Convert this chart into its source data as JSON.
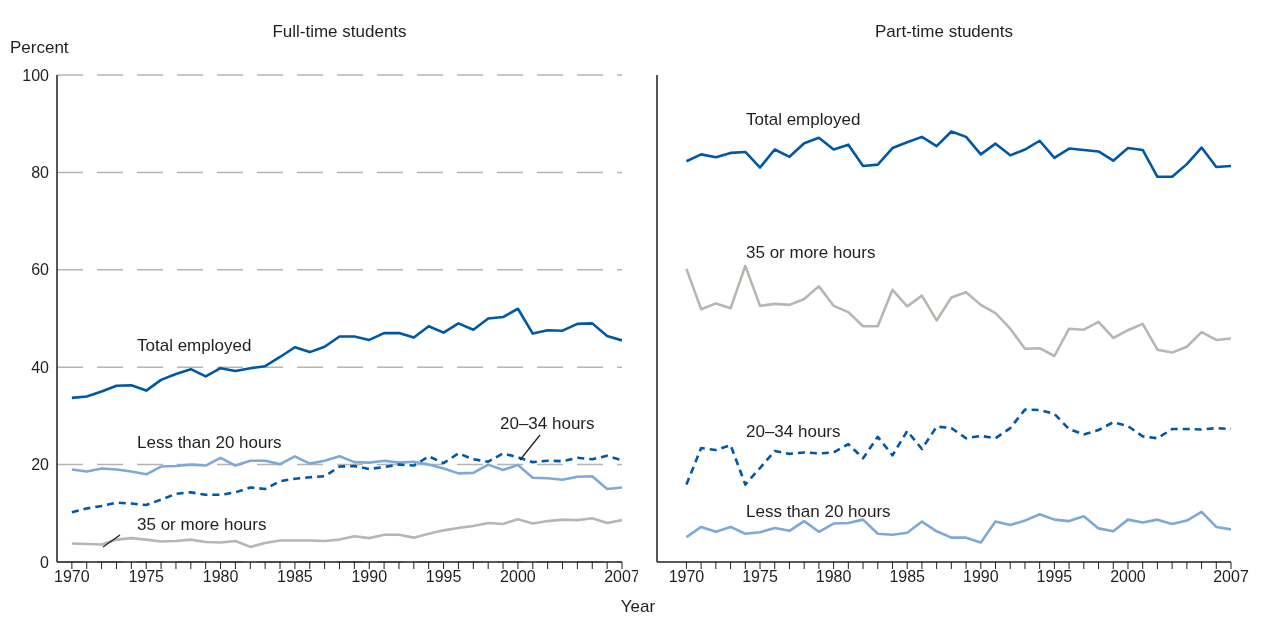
{
  "chart_data": [
    {
      "type": "line",
      "title": "Full-time students",
      "ylabel": "Percent",
      "xlabel": "Year",
      "xlim": [
        1969,
        2007
      ],
      "ylim": [
        0,
        100
      ],
      "yticks": [
        0,
        20,
        40,
        60,
        80,
        100
      ],
      "grid": "y",
      "xticks": [
        1970,
        {
          "value": 1971,
          "label": null
        },
        {
          "value": 1972,
          "label": null
        },
        {
          "value": 1973,
          "label": null
        },
        {
          "value": 1974,
          "label": null
        },
        1975,
        {
          "value": 1976,
          "label": null
        },
        {
          "value": 1977,
          "label": null
        },
        {
          "value": 1978,
          "label": null
        },
        {
          "value": 1979,
          "label": null
        },
        1980,
        {
          "value": 1981,
          "label": null
        },
        {
          "value": 1982,
          "label": null
        },
        {
          "value": 1983,
          "label": null
        },
        {
          "value": 1984,
          "label": null
        },
        1985,
        {
          "value": 1986,
          "label": null
        },
        {
          "value": 1987,
          "label": null
        },
        {
          "value": 1988,
          "label": null
        },
        {
          "value": 1989,
          "label": null
        },
        1990,
        {
          "value": 1991,
          "label": null
        },
        {
          "value": 1992,
          "label": null
        },
        {
          "value": 1993,
          "label": null
        },
        {
          "value": 1994,
          "label": null
        },
        1995,
        {
          "value": 1996,
          "label": null
        },
        {
          "value": 1997,
          "label": null
        },
        {
          "value": 1998,
          "label": null
        },
        {
          "value": 1999,
          "label": null
        },
        2000,
        {
          "value": 2001,
          "label": null
        },
        {
          "value": 2002,
          "label": null
        },
        {
          "value": 2003,
          "label": null
        },
        {
          "value": 2004,
          "label": null
        },
        {
          "value": 2005,
          "label": null
        },
        {
          "value": 2006,
          "label": null
        },
        2007
      ],
      "x": [
        1970,
        1971,
        1972,
        1973,
        1974,
        1975,
        1976,
        1977,
        1978,
        1979,
        1980,
        1981,
        1982,
        1983,
        1984,
        1985,
        1986,
        1987,
        1988,
        1989,
        1990,
        1991,
        1992,
        1993,
        1994,
        1995,
        1996,
        1997,
        1998,
        1999,
        2000,
        2001,
        2002,
        2003,
        2004,
        2005,
        2006,
        2007
      ],
      "series": [
        {
          "name": "Total employed",
          "color": "#0057a5",
          "values": [
            33.7,
            34,
            35,
            36.2,
            36.3,
            35.2,
            37.4,
            38.6,
            39.6,
            38.1,
            39.8,
            39.2,
            39.8,
            40.2,
            42.1,
            44.1,
            43.1,
            44.2,
            46.3,
            46.3,
            45.6,
            47,
            47,
            46.1,
            48.4,
            47.1,
            49,
            47.7,
            50,
            50.3,
            52,
            46.9,
            47.6,
            47.5,
            48.9,
            49,
            46.4,
            45.5
          ]
        },
        {
          "name": "Less than 20 hours",
          "color": "#7ea8d8",
          "values": [
            19,
            18.6,
            19.2,
            19,
            18.6,
            18,
            19.6,
            19.7,
            20,
            19.8,
            21.4,
            19.8,
            20.8,
            20.8,
            20.1,
            21.7,
            20.2,
            20.8,
            21.7,
            20.5,
            20.4,
            20.8,
            20.4,
            20.6,
            20,
            19.2,
            18.2,
            18.3,
            20,
            18.9,
            19.9,
            17.3,
            17.2,
            16.9,
            17.5,
            17.6,
            15,
            15.3
          ]
        },
        {
          "name": "20–34 hours",
          "color": "#0057a5",
          "line_style": "dashed",
          "values": [
            10.2,
            11,
            11.5,
            12.2,
            12,
            11.7,
            12.8,
            14,
            14.3,
            13.8,
            13.8,
            14.3,
            15.3,
            15,
            16.6,
            17.1,
            17.4,
            17.6,
            19.6,
            19.7,
            19.1,
            19.5,
            20,
            19.8,
            21.7,
            20.3,
            22.3,
            21.1,
            20.6,
            22.3,
            21.5,
            20.5,
            20.8,
            20.7,
            21.4,
            21.1,
            21.8,
            20.9
          ]
        },
        {
          "name": "35 or more hours",
          "color": "#b7b7b2",
          "values": [
            3.8,
            3.7,
            3.6,
            4.6,
            4.9,
            4.6,
            4.2,
            4.3,
            4.6,
            4.1,
            4,
            4.3,
            3.1,
            3.9,
            4.4,
            4.4,
            4.4,
            4.3,
            4.6,
            5.3,
            4.9,
            5.6,
            5.6,
            5,
            5.8,
            6.5,
            7,
            7.4,
            8,
            7.8,
            8.8,
            7.9,
            8.4,
            8.7,
            8.6,
            9,
            8,
            8.6
          ]
        }
      ]
    },
    {
      "type": "line",
      "title": "Part-time students",
      "tick_labels": "x",
      "xlim": [
        1968,
        2007
      ],
      "ylim": [
        0,
        100
      ],
      "yticks": [
        0,
        20,
        40,
        60,
        80,
        100
      ],
      "grid": "y",
      "xticks": [
        1970,
        {
          "value": 1971,
          "label": null
        },
        {
          "value": 1972,
          "label": null
        },
        {
          "value": 1973,
          "label": null
        },
        {
          "value": 1974,
          "label": null
        },
        1975,
        {
          "value": 1976,
          "label": null
        },
        {
          "value": 1977,
          "label": null
        },
        {
          "value": 1978,
          "label": null
        },
        {
          "value": 1979,
          "label": null
        },
        1980,
        {
          "value": 1981,
          "label": null
        },
        {
          "value": 1982,
          "label": null
        },
        {
          "value": 1983,
          "label": null
        },
        {
          "value": 1984,
          "label": null
        },
        1985,
        {
          "value": 1986,
          "label": null
        },
        {
          "value": 1987,
          "label": null
        },
        {
          "value": 1988,
          "label": null
        },
        {
          "value": 1989,
          "label": null
        },
        1990,
        {
          "value": 1991,
          "label": null
        },
        {
          "value": 1992,
          "label": null
        },
        {
          "value": 1993,
          "label": null
        },
        {
          "value": 1994,
          "label": null
        },
        1995,
        {
          "value": 1996,
          "label": null
        },
        {
          "value": 1997,
          "label": null
        },
        {
          "value": 1998,
          "label": null
        },
        {
          "value": 1999,
          "label": null
        },
        2000,
        {
          "value": 2001,
          "label": null
        },
        {
          "value": 2002,
          "label": null
        },
        {
          "value": 2003,
          "label": null
        },
        {
          "value": 2004,
          "label": null
        },
        {
          "value": 2005,
          "label": null
        },
        {
          "value": 2006,
          "label": null
        },
        2007
      ],
      "x": [
        1970,
        1971,
        1972,
        1973,
        1974,
        1975,
        1976,
        1977,
        1978,
        1979,
        1980,
        1981,
        1982,
        1983,
        1984,
        1985,
        1986,
        1987,
        1988,
        1989,
        1990,
        1991,
        1992,
        1993,
        1994,
        1995,
        1996,
        1997,
        1998,
        1999,
        2000,
        2001,
        2002,
        2003,
        2004,
        2005,
        2006,
        2007
      ],
      "series": [
        {
          "name": "Total employed",
          "color": "#0057a5",
          "values": [
            82.3,
            83.7,
            83.1,
            84,
            84.2,
            81,
            84.7,
            83.2,
            86,
            87.1,
            84.7,
            85.7,
            81.3,
            81.6,
            85,
            86.2,
            87.3,
            85.4,
            88.4,
            87.3,
            83.7,
            85.9,
            83.5,
            84.7,
            86.5,
            83,
            84.9,
            84.6,
            84.3,
            82.4,
            85,
            84.6,
            79.1,
            79.1,
            81.7,
            85.1,
            81.1,
            81.3
          ]
        },
        {
          "name": "35 or more hours",
          "color": "#b7b7b2",
          "values": [
            60.2,
            51.9,
            53.1,
            52.1,
            60.8,
            52.6,
            53,
            52.8,
            54,
            56.6,
            52.6,
            51.3,
            48.4,
            48.4,
            55.9,
            52.5,
            54.7,
            49.6,
            54.3,
            55.4,
            52.8,
            51.1,
            47.9,
            43.8,
            43.9,
            42.3,
            47.9,
            47.7,
            49.3,
            46,
            47.6,
            48.9,
            43.6,
            43,
            44.2,
            47.2,
            45.6,
            45.9
          ]
        },
        {
          "name": "20–34 hours",
          "color": "#0057a5",
          "line_style": "dashed",
          "values": [
            15.9,
            23.4,
            23,
            24,
            15.9,
            19.3,
            22.8,
            22.2,
            22.5,
            22.3,
            22.5,
            24.2,
            21.3,
            25.7,
            21.9,
            26.9,
            23.2,
            27.8,
            27.5,
            25.4,
            25.9,
            25.4,
            27.5,
            31.3,
            31.2,
            30.4,
            27.3,
            26.2,
            27.1,
            28.7,
            27.9,
            25.8,
            25.4,
            27.3,
            27.3,
            27.2,
            27.5,
            27.3
          ]
        },
        {
          "name": "Less than 20 hours",
          "color": "#7ea8d8",
          "values": [
            5.1,
            7.2,
            6.2,
            7.2,
            5.8,
            6.1,
            7,
            6.4,
            8.4,
            6.2,
            7.9,
            8,
            8.7,
            5.8,
            5.6,
            6,
            8.3,
            6.3,
            5,
            5,
            4,
            8.3,
            7.6,
            8.5,
            9.8,
            8.7,
            8.4,
            9.4,
            6.9,
            6.3,
            8.7,
            8.1,
            8.7,
            7.8,
            8.5,
            10.3,
            7.2,
            6.7
          ]
        }
      ]
    }
  ]
}
